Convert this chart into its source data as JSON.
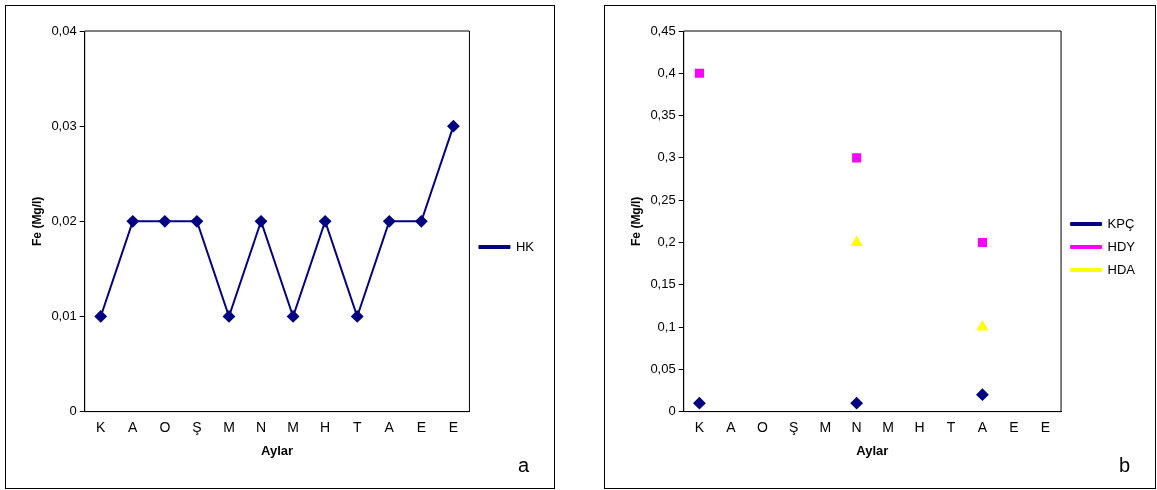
{
  "chart_data": [
    {
      "type": "line",
      "xlabel": "Aylar",
      "ylabel": "Fe (Mg/l)",
      "categories": [
        "K",
        "A",
        "O",
        "Ş",
        "M",
        "N",
        "M",
        "H",
        "T",
        "A",
        "E",
        "E"
      ],
      "series": [
        {
          "name": "HK",
          "color": "#000080",
          "marker": "diamond",
          "values": [
            0.01,
            0.02,
            0.02,
            0.02,
            0.01,
            0.02,
            0.01,
            0.02,
            0.01,
            0.02,
            0.02,
            0.03
          ]
        }
      ],
      "ylim": [
        0,
        0.04
      ],
      "yticks": [
        {
          "value": 0,
          "label": "0"
        },
        {
          "value": 0.01,
          "label": "0,01"
        },
        {
          "value": 0.02,
          "label": "0,02"
        },
        {
          "value": 0.03,
          "label": "0,03"
        },
        {
          "value": 0.04,
          "label": "0,04"
        }
      ],
      "legend": "right",
      "grid": false,
      "annotations": [
        "a"
      ]
    },
    {
      "type": "scatter",
      "xlabel": "Aylar",
      "ylabel": "Fe (Mg/l)",
      "categories": [
        "K",
        "A",
        "O",
        "Ş",
        "M",
        "N",
        "M",
        "H",
        "T",
        "A",
        "E",
        "E"
      ],
      "series": [
        {
          "name": "KPÇ",
          "color": "#000080",
          "marker": "diamond",
          "values": [
            0.01,
            null,
            null,
            null,
            null,
            0.01,
            null,
            null,
            null,
            0.02,
            null,
            null
          ]
        },
        {
          "name": "HDY",
          "color": "#ff00ff",
          "marker": "square",
          "values": [
            0.4,
            null,
            null,
            null,
            null,
            0.3,
            null,
            null,
            null,
            0.2,
            null,
            null
          ]
        },
        {
          "name": "HDA",
          "color": "#ffff00",
          "marker": "triangle",
          "values": [
            null,
            null,
            null,
            null,
            null,
            0.2,
            null,
            null,
            null,
            0.1,
            null,
            null
          ]
        }
      ],
      "ylim": [
        0,
        0.45
      ],
      "yticks": [
        {
          "value": 0,
          "label": "0"
        },
        {
          "value": 0.05,
          "label": "0,05"
        },
        {
          "value": 0.1,
          "label": "0,1"
        },
        {
          "value": 0.15,
          "label": "0,15"
        },
        {
          "value": 0.2,
          "label": "0,2"
        },
        {
          "value": 0.25,
          "label": "0,25"
        },
        {
          "value": 0.3,
          "label": "0,3"
        },
        {
          "value": 0.35,
          "label": "0,35"
        },
        {
          "value": 0.4,
          "label": "0,4"
        },
        {
          "value": 0.45,
          "label": "0,45"
        }
      ],
      "legend": "right",
      "grid": false,
      "annotations": [
        "b"
      ]
    }
  ]
}
